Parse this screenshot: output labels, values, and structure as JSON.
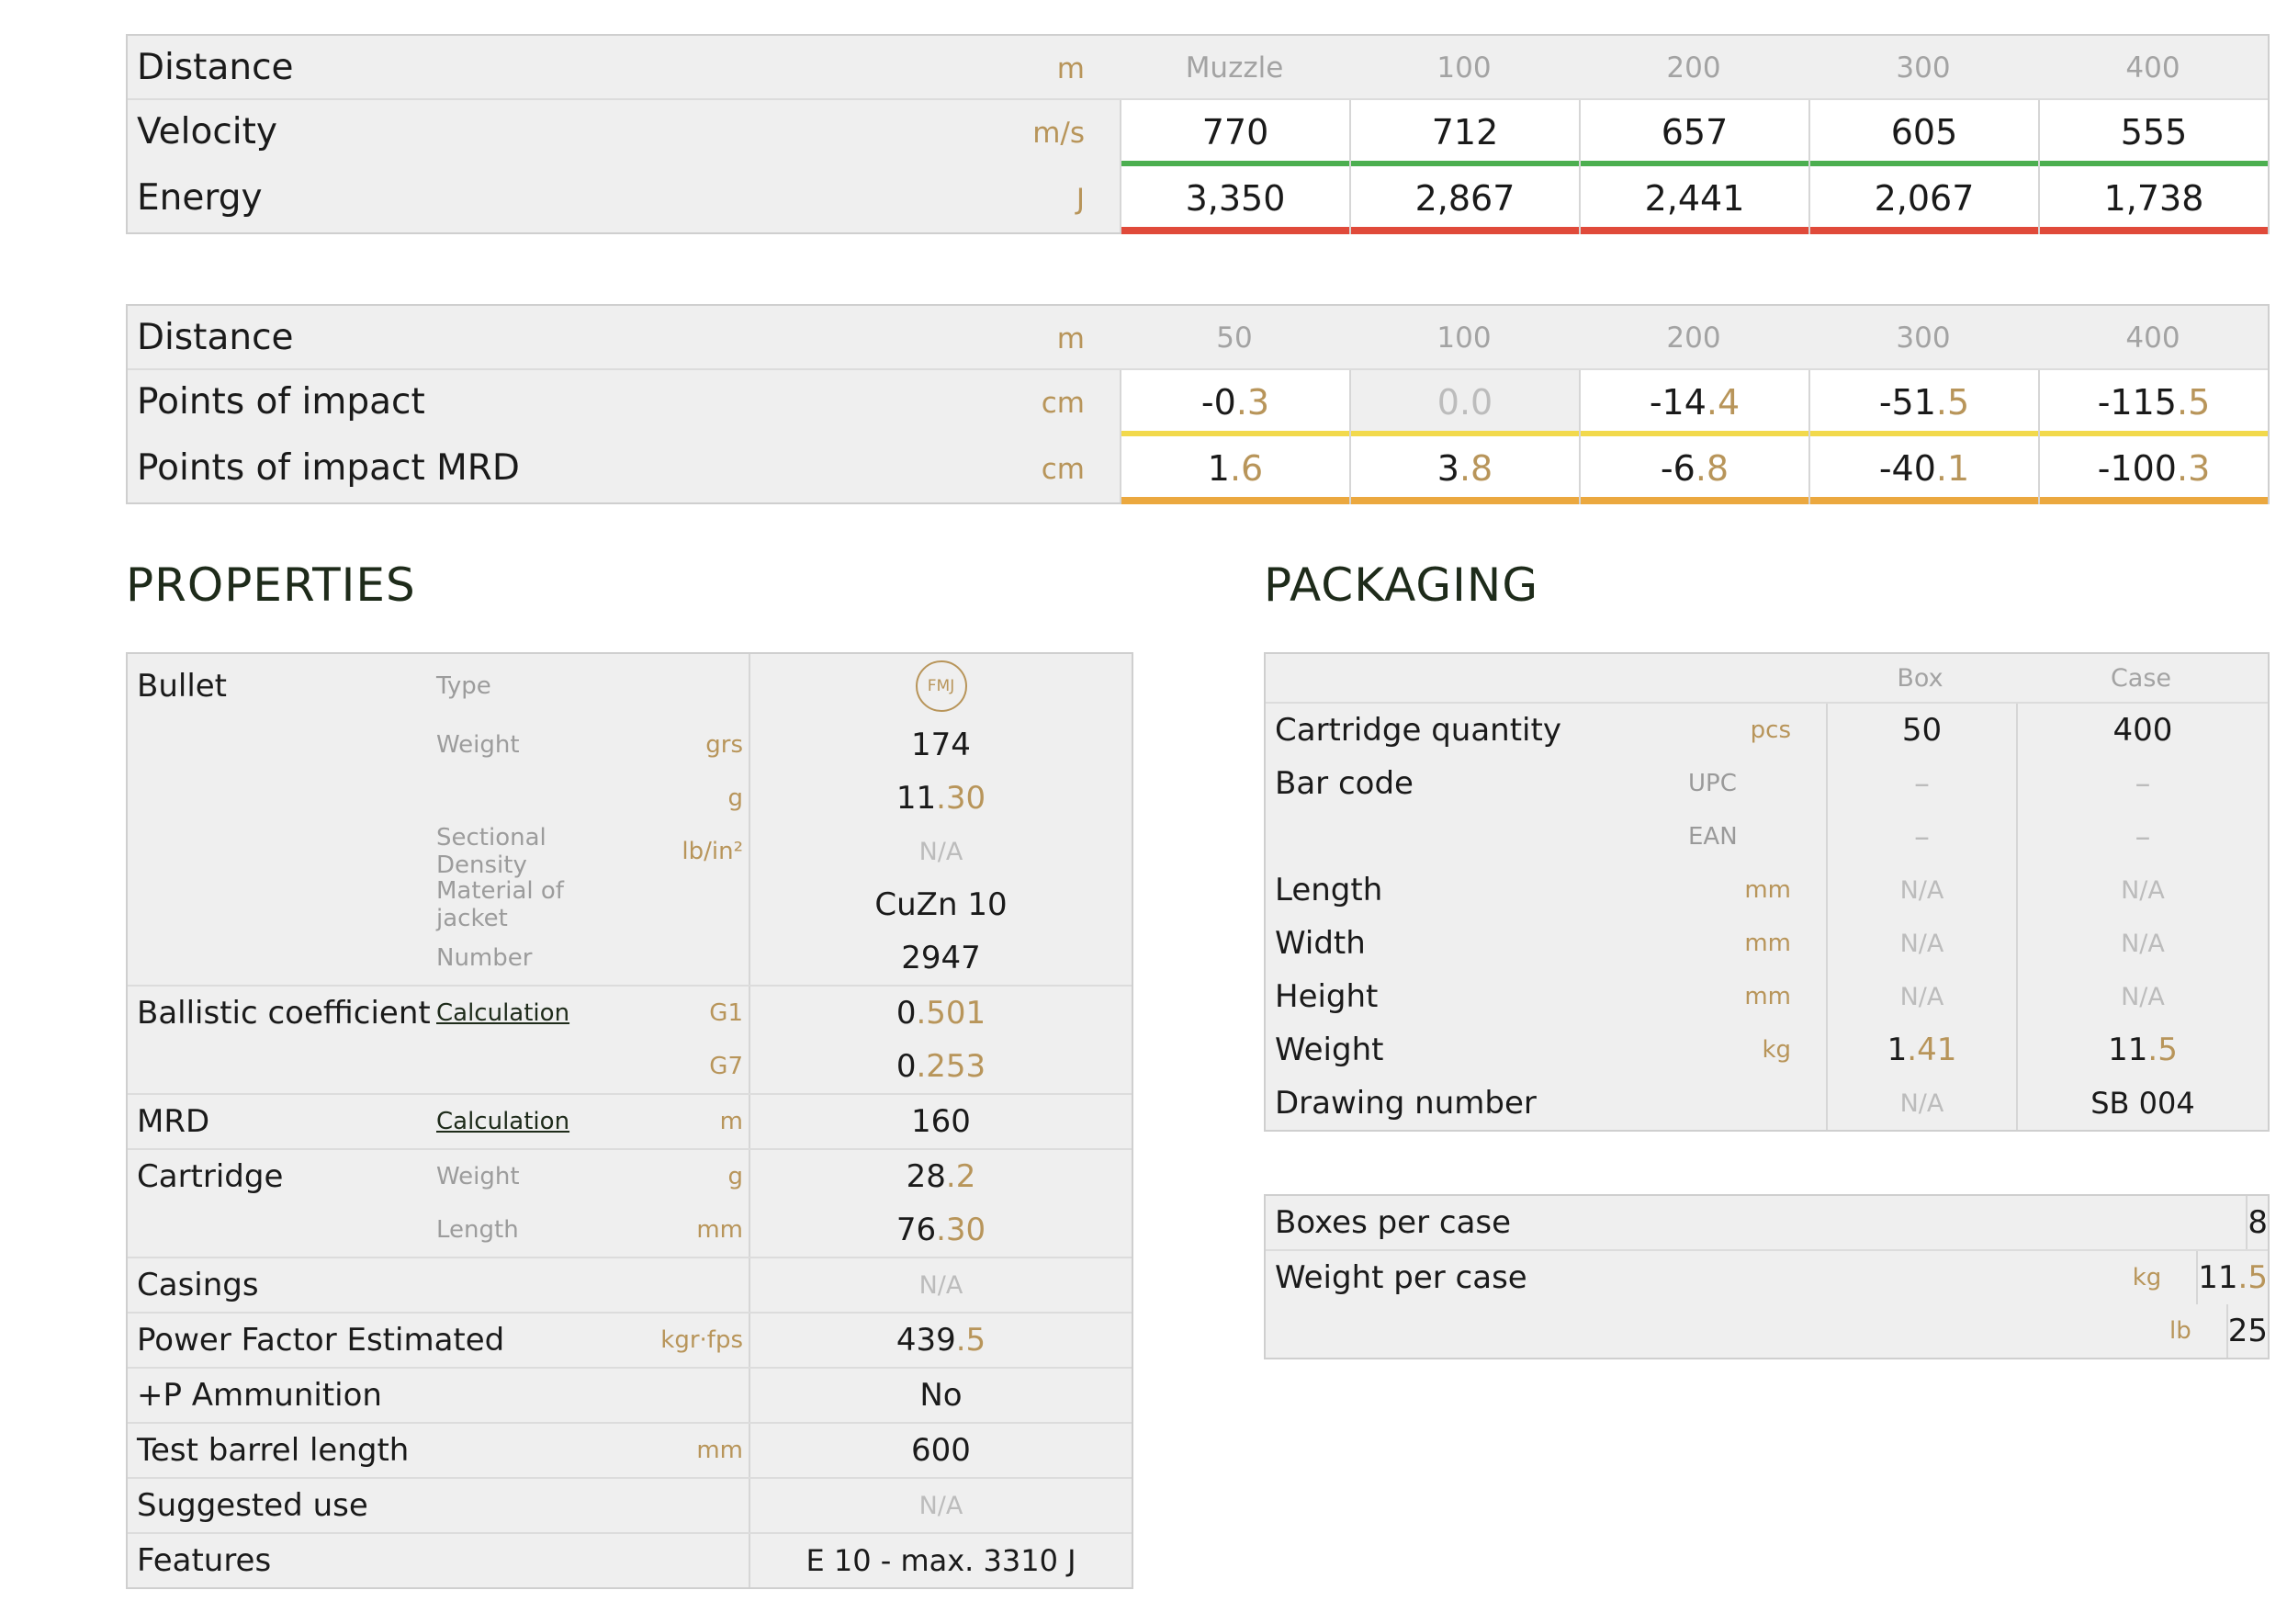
{
  "velocity_table": {
    "distance_label": "Distance",
    "distance_unit": "m",
    "distances": [
      "Muzzle",
      "100",
      "200",
      "300",
      "400"
    ],
    "velocity_label": "Velocity",
    "velocity_unit": "m/s",
    "velocity": [
      "770",
      "712",
      "657",
      "605",
      "555"
    ],
    "energy_label": "Energy",
    "energy_unit": "J",
    "energy": [
      "3,350",
      "2,867",
      "2,441",
      "2,067",
      "1,738"
    ],
    "velocity_bar_color": "#4caf50",
    "energy_bar_color": "#e04a3a"
  },
  "impact_table": {
    "distance_label": "Distance",
    "distance_unit": "m",
    "distances": [
      "50",
      "100",
      "200",
      "300",
      "400"
    ],
    "poi_label": "Points of impact",
    "poi_unit": "cm",
    "poi": [
      {
        "int": "-0",
        "dec": ".3"
      },
      {
        "int": "0.0",
        "dec": ""
      },
      {
        "int": "-14",
        "dec": ".4"
      },
      {
        "int": "-51",
        "dec": ".5"
      },
      {
        "int": "-115",
        "dec": ".5"
      }
    ],
    "mrd_label": "Points of impact MRD",
    "mrd_unit": "cm",
    "mrd": [
      {
        "int": "1",
        "dec": ".6"
      },
      {
        "int": "3",
        "dec": ".8"
      },
      {
        "int": "-6",
        "dec": ".8"
      },
      {
        "int": "-40",
        "dec": ".1"
      },
      {
        "int": "-100",
        "dec": ".3"
      }
    ],
    "poi_bar_color": "#f2d94c",
    "mrd_bar_color": "#eba83f"
  },
  "properties": {
    "heading": "PROPERTIES",
    "bullet": "Bullet",
    "type_label": "Type",
    "type_icon": "FMJ",
    "weight_label": "Weight",
    "weight_unit_grs": "grs",
    "weight_grs": "174",
    "weight_unit_g": "g",
    "weight_g_int": "11",
    "weight_g_dec": ".30",
    "sd_label": "Sectional Density",
    "sd_unit": "lb/in²",
    "sd_value": "N/A",
    "jacket_label": "Material of jacket",
    "jacket_value": "CuZn 10",
    "number_label": "Number",
    "number_value": "2947",
    "bc_label": "Ballistic coefficient",
    "calculation": "Calculation",
    "g1_label": "G1",
    "g1_int": "0",
    "g1_dec": ".501",
    "g7_label": "G7",
    "g7_int": "0",
    "g7_dec": ".253",
    "mrd_label": "MRD",
    "mrd_unit": "m",
    "mrd_value": "160",
    "cartridge_label": "Cartridge",
    "c_weight_label": "Weight",
    "c_weight_unit": "g",
    "c_weight_int": "28",
    "c_weight_dec": ".2",
    "c_length_label": "Length",
    "c_length_unit": "mm",
    "c_length_int": "76",
    "c_length_dec": ".30",
    "casings_label": "Casings",
    "casings_value": "N/A",
    "pf_label": "Power Factor Estimated",
    "pf_unit": "kgr·fps",
    "pf_int": "439",
    "pf_dec": ".5",
    "plusp_label": "+P Ammunition",
    "plusp_value": "No",
    "barrel_label": "Test barrel length",
    "barrel_unit": "mm",
    "barrel_value": "600",
    "use_label": "Suggested use",
    "use_value": "N/A",
    "features_label": "Features",
    "features_value": "E 10 - max. 3310 J"
  },
  "packaging": {
    "heading": "PACKAGING",
    "col_box": "Box",
    "col_case": "Case",
    "qty_label": "Cartridge quantity",
    "qty_unit": "pcs",
    "qty_box": "50",
    "qty_case": "400",
    "barcode_label": "Bar code",
    "upc_label": "UPC",
    "upc_box": "–",
    "upc_case": "–",
    "ean_label": "EAN",
    "ean_box": "–",
    "ean_case": "–",
    "length_label": "Length",
    "length_unit": "mm",
    "length_box": "N/A",
    "length_case": "N/A",
    "width_label": "Width",
    "width_unit": "mm",
    "width_box": "N/A",
    "width_case": "N/A",
    "height_label": "Height",
    "height_unit": "mm",
    "height_box": "N/A",
    "height_case": "N/A",
    "weight_label": "Weight",
    "weight_unit": "kg",
    "weight_box_int": "1",
    "weight_box_dec": ".41",
    "weight_case_int": "11",
    "weight_case_dec": ".5",
    "drawing_label": "Drawing number",
    "drawing_box": "N/A",
    "drawing_case": "SB 004"
  },
  "case_info": {
    "boxes_label": "Boxes per case",
    "boxes_value": "8",
    "wpc_label": "Weight per case",
    "wpc_kg_unit": "kg",
    "wpc_kg_int": "11",
    "wpc_kg_dec": ".5",
    "wpc_lb_unit": "lb",
    "wpc_lb_value": "25"
  }
}
